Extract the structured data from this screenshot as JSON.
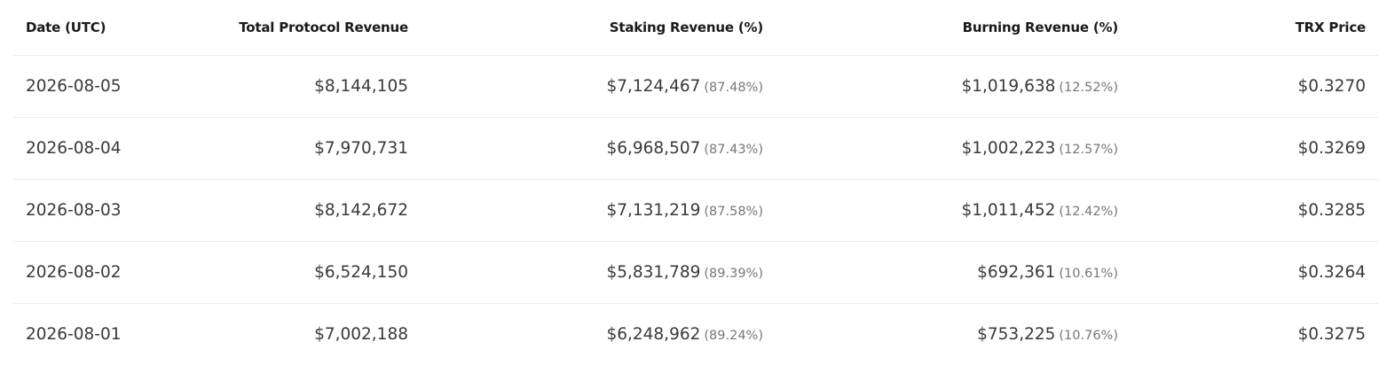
{
  "table": {
    "headers": {
      "date": "Date (UTC)",
      "total": "Total Protocol Revenue",
      "staking": "Staking Revenue (%)",
      "burning": "Burning Revenue (%)",
      "price": "TRX Price"
    },
    "rows": [
      {
        "date": "2026-08-05",
        "total": "$8,144,105",
        "staking": "$7,124,467",
        "staking_pct": "(87.48%)",
        "burning": "$1,019,638",
        "burning_pct": "(12.52%)",
        "price": "$0.3270"
      },
      {
        "date": "2026-08-04",
        "total": "$7,970,731",
        "staking": "$6,968,507",
        "staking_pct": "(87.43%)",
        "burning": "$1,002,223",
        "burning_pct": "(12.57%)",
        "price": "$0.3269"
      },
      {
        "date": "2026-08-03",
        "total": "$8,142,672",
        "staking": "$7,131,219",
        "staking_pct": "(87.58%)",
        "burning": "$1,011,452",
        "burning_pct": "(12.42%)",
        "price": "$0.3285"
      },
      {
        "date": "2026-08-02",
        "total": "$6,524,150",
        "staking": "$5,831,789",
        "staking_pct": "(89.39%)",
        "burning": "$692,361",
        "burning_pct": "(10.61%)",
        "price": "$0.3264"
      },
      {
        "date": "2026-08-01",
        "total": "$7,002,188",
        "staking": "$6,248,962",
        "staking_pct": "(89.24%)",
        "burning": "$753,225",
        "burning_pct": "(10.76%)",
        "price": "$0.3275"
      }
    ]
  }
}
